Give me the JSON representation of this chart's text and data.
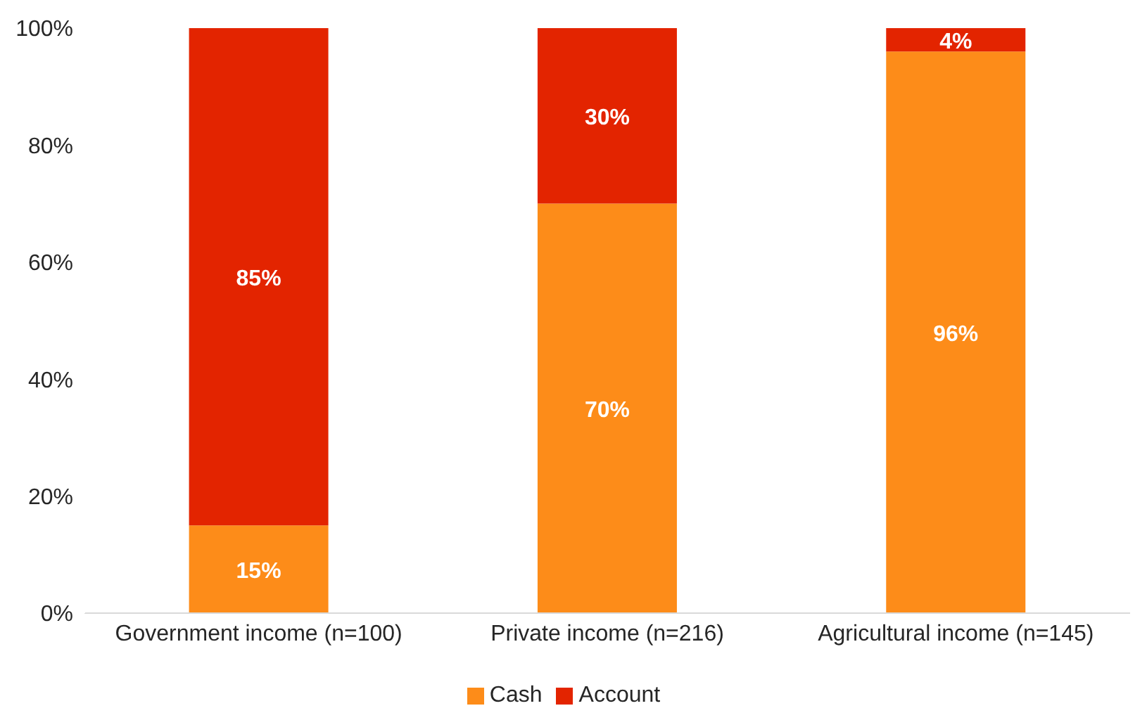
{
  "chart_data": {
    "type": "bar",
    "stacked": true,
    "categories": [
      "Government income (n=100)",
      "Private income (n=216)",
      "Agricultural income (n=145)"
    ],
    "series": [
      {
        "name": "Cash",
        "color": "#fd8c19",
        "values": [
          15,
          70,
          96
        ],
        "value_labels": [
          "15%",
          "70%",
          "96%"
        ]
      },
      {
        "name": "Account",
        "color": "#e32400",
        "values": [
          85,
          30,
          4
        ],
        "value_labels": [
          "85%",
          "30%",
          "4%"
        ]
      }
    ],
    "ylim": [
      0,
      100
    ],
    "yticks": [
      {
        "value": 0,
        "label": "0%"
      },
      {
        "value": 20,
        "label": "20%"
      },
      {
        "value": 40,
        "label": "40%"
      },
      {
        "value": 60,
        "label": "60%"
      },
      {
        "value": 80,
        "label": "80%"
      },
      {
        "value": 100,
        "label": "100%"
      }
    ],
    "grid": false,
    "legend": "bottom"
  }
}
